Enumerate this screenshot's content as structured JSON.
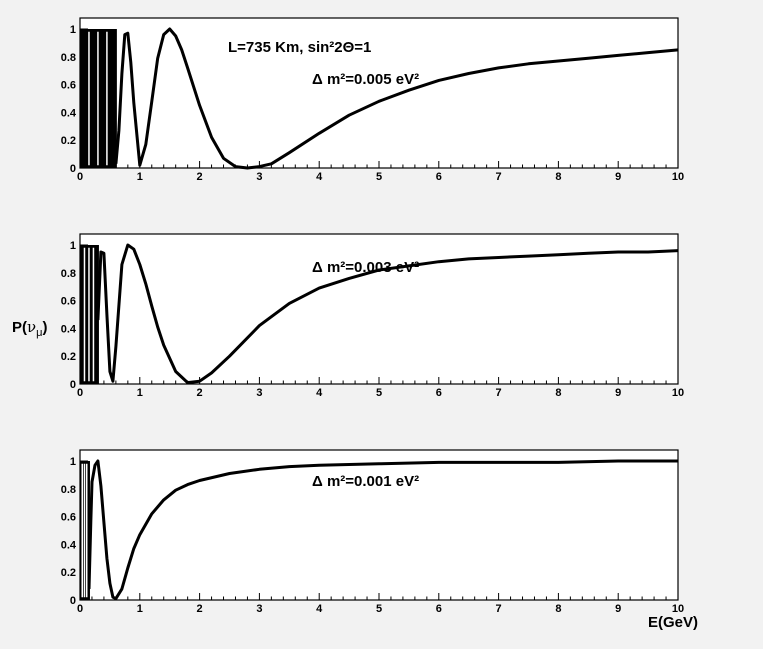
{
  "chart_data": [
    {
      "type": "line",
      "xlim": [
        0,
        10
      ],
      "ylim": [
        0,
        1
      ],
      "x_ticks": [
        "0",
        "1",
        "2",
        "3",
        "4",
        "5",
        "6",
        "7",
        "8",
        "9",
        "10"
      ],
      "y_ticks": [
        "0",
        "0.2",
        "0.4",
        "0.6",
        "0.8",
        "1"
      ],
      "annotation_main": "L=735 Km, sin²2Θ=1",
      "annotation": "Δ m²=0.005 eV²",
      "series": [
        {
          "L_km": 735,
          "dm2_eV2": 0.005,
          "x": [
            0.6,
            0.65,
            0.7,
            0.75,
            0.8,
            0.85,
            0.9,
            1.0,
            1.1,
            1.2,
            1.3,
            1.4,
            1.5,
            1.6,
            1.7,
            1.8,
            2.0,
            2.2,
            2.4,
            2.6,
            2.8,
            3.0,
            3.2,
            3.5,
            4.0,
            4.5,
            5.0,
            5.5,
            6.0,
            6.5,
            7.0,
            7.5,
            8.0,
            8.5,
            9.0,
            9.5,
            10.0
          ],
          "y": [
            0.03,
            0.27,
            0.68,
            0.96,
            0.97,
            0.76,
            0.47,
            0.02,
            0.17,
            0.48,
            0.79,
            0.96,
            1.0,
            0.95,
            0.85,
            0.72,
            0.45,
            0.22,
            0.07,
            0.01,
            0.0,
            0.01,
            0.03,
            0.11,
            0.25,
            0.38,
            0.48,
            0.56,
            0.63,
            0.68,
            0.72,
            0.75,
            0.77,
            0.79,
            0.81,
            0.83,
            0.85
          ]
        }
      ]
    },
    {
      "type": "line",
      "xlim": [
        0,
        10
      ],
      "ylim": [
        0,
        1
      ],
      "x_ticks": [
        "0",
        "1",
        "2",
        "3",
        "4",
        "5",
        "6",
        "7",
        "8",
        "9",
        "10"
      ],
      "y_ticks": [
        "0",
        "0.2",
        "0.4",
        "0.6",
        "0.8",
        "1"
      ],
      "annotation": "Δ m²=0.003 eV²",
      "series": [
        {
          "L_km": 735,
          "dm2_eV2": 0.003,
          "x": [
            0.3,
            0.35,
            0.4,
            0.45,
            0.5,
            0.55,
            0.6,
            0.7,
            0.8,
            0.9,
            1.0,
            1.1,
            1.2,
            1.3,
            1.4,
            1.6,
            1.8,
            2.0,
            2.2,
            2.5,
            3.0,
            3.5,
            4.0,
            4.5,
            5.0,
            5.5,
            6.0,
            6.5,
            7.0,
            7.5,
            8.0,
            8.5,
            9.0,
            9.5,
            10.0
          ],
          "y": [
            0.46,
            0.95,
            0.94,
            0.5,
            0.09,
            0.02,
            0.27,
            0.86,
            1.0,
            0.97,
            0.86,
            0.72,
            0.56,
            0.41,
            0.28,
            0.09,
            0.01,
            0.02,
            0.08,
            0.2,
            0.42,
            0.58,
            0.69,
            0.76,
            0.82,
            0.85,
            0.88,
            0.9,
            0.91,
            0.92,
            0.93,
            0.94,
            0.95,
            0.95,
            0.96
          ]
        }
      ]
    },
    {
      "type": "line",
      "xlim": [
        0,
        10
      ],
      "ylim": [
        0,
        1
      ],
      "x_ticks": [
        "0",
        "1",
        "2",
        "3",
        "4",
        "5",
        "6",
        "7",
        "8",
        "9",
        "10"
      ],
      "y_ticks": [
        "0",
        "0.2",
        "0.4",
        "0.6",
        "0.8",
        "1"
      ],
      "annotation": "Δ m²=0.001 eV²",
      "series": [
        {
          "L_km": 735,
          "dm2_eV2": 0.001,
          "x": [
            0.15,
            0.18,
            0.2,
            0.25,
            0.3,
            0.35,
            0.4,
            0.45,
            0.5,
            0.55,
            0.6,
            0.7,
            0.8,
            0.9,
            1.0,
            1.2,
            1.4,
            1.6,
            1.8,
            2.0,
            2.5,
            3.0,
            3.5,
            4.0,
            5.0,
            6.0,
            7.0,
            8.0,
            9.0,
            10.0
          ],
          "y": [
            0.08,
            0.56,
            0.85,
            0.97,
            1.0,
            0.82,
            0.56,
            0.3,
            0.12,
            0.02,
            0.01,
            0.08,
            0.23,
            0.37,
            0.47,
            0.62,
            0.72,
            0.79,
            0.83,
            0.86,
            0.91,
            0.94,
            0.96,
            0.97,
            0.98,
            0.99,
            0.99,
            0.99,
            1.0,
            1.0
          ]
        }
      ]
    }
  ],
  "ylabel_text": "P(",
  "ylabel_nu": "ν",
  "ylabel_mu": "μ",
  "ylabel_close": ")",
  "xlabel": "E(GeV)",
  "curve_color": "#000000"
}
